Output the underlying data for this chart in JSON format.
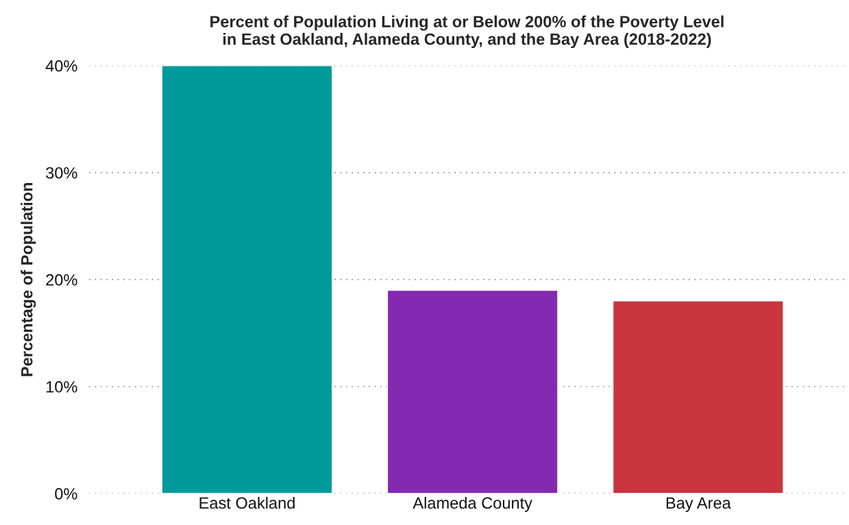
{
  "chart_data": {
    "type": "bar",
    "title": "Percent of Population Living at or Below 200% of the Poverty Level\nin East Oakland, Alameda County, and the Bay Area (2018-2022)",
    "ylabel": "Percentage of Population",
    "categories": [
      "East Oakland",
      "Alameda County",
      "Bay Area"
    ],
    "values": [
      40,
      19,
      18
    ],
    "colors": [
      "#009999",
      "#8229b0",
      "#c9343f"
    ],
    "ylim": [
      0,
      40
    ],
    "yticks": [
      {
        "value": 0,
        "label": "0%"
      },
      {
        "value": 10,
        "label": "10%"
      },
      {
        "value": 20,
        "label": "20%"
      },
      {
        "value": 30,
        "label": "30%"
      },
      {
        "value": 40,
        "label": "40%"
      }
    ],
    "grid": "y",
    "legend": false
  }
}
